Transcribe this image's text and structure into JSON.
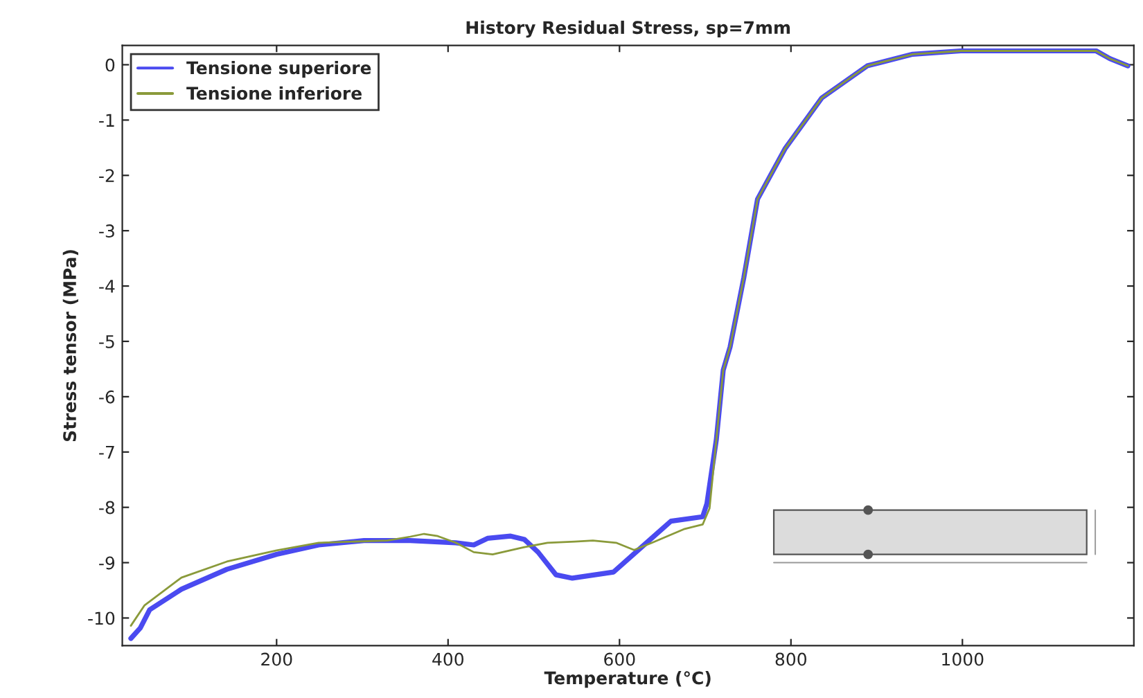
{
  "chart_data": {
    "type": "line",
    "title": "History Residual Stress, sp=7mm",
    "xlabel": "Temperature (°C)",
    "ylabel": "Stress tensor (MPa)",
    "xlim": [
      20,
      1200
    ],
    "ylim": [
      -10.5,
      0.35
    ],
    "xticks": [
      200,
      400,
      600,
      800,
      1000
    ],
    "yticks": [
      -10,
      -9,
      -8,
      -7,
      -6,
      -5,
      -4,
      -3,
      -2,
      -1,
      0
    ],
    "grid": false,
    "legend": "top left",
    "line_style": "solid",
    "marker": "none",
    "series": [
      {
        "name": "Tensione superiore",
        "color": "#4a4af0",
        "x": [
          30,
          41,
          52,
          89,
          142,
          200,
          249,
          302,
          356,
          409,
          430,
          446,
          473,
          489,
          505,
          526,
          545,
          593,
          622,
          660,
          697,
          702,
          713,
          721,
          729,
          745,
          761,
          793,
          836,
          889,
          942,
          998,
          1156,
          1172,
          1193
        ],
        "values": [
          -10.37,
          -10.18,
          -9.85,
          -9.48,
          -9.12,
          -8.85,
          -8.68,
          -8.6,
          -8.6,
          -8.64,
          -8.68,
          -8.56,
          -8.52,
          -8.58,
          -8.81,
          -9.22,
          -9.28,
          -9.17,
          -8.77,
          -8.25,
          -8.17,
          -7.93,
          -6.77,
          -5.52,
          -5.1,
          -3.85,
          -2.43,
          -1.52,
          -0.6,
          -0.02,
          0.19,
          0.25,
          0.25,
          0.11,
          -0.02
        ]
      },
      {
        "name": "Tensione inferiore",
        "color": "#8a9a3a",
        "x": [
          30,
          46,
          89,
          142,
          200,
          249,
          329,
          356,
          372,
          388,
          409,
          430,
          452,
          489,
          516,
          548,
          569,
          596,
          617,
          638,
          676,
          697,
          705,
          713,
          721,
          729,
          745,
          761,
          793,
          836,
          889,
          942,
          998,
          1156,
          1172,
          1193
        ],
        "values": [
          -10.14,
          -9.77,
          -9.27,
          -8.98,
          -8.78,
          -8.64,
          -8.6,
          -8.53,
          -8.48,
          -8.52,
          -8.64,
          -8.81,
          -8.85,
          -8.72,
          -8.64,
          -8.62,
          -8.6,
          -8.64,
          -8.77,
          -8.64,
          -8.39,
          -8.31,
          -8.02,
          -6.77,
          -5.52,
          -5.1,
          -3.85,
          -2.43,
          -1.52,
          -0.6,
          -0.02,
          0.19,
          0.25,
          0.25,
          0.11,
          -0.02
        ]
      }
    ]
  }
}
